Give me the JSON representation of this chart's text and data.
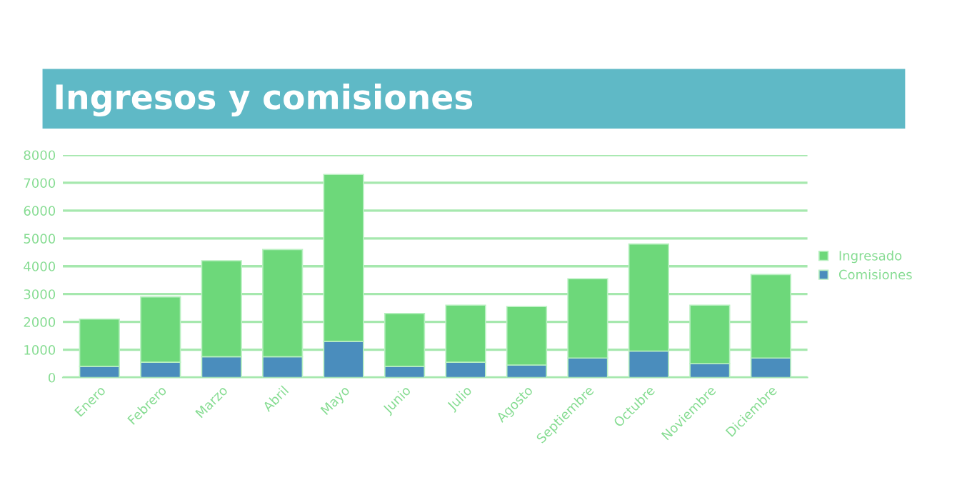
{
  "chart_data": {
    "type": "bar",
    "title": "Ingresos y comisiones",
    "stacked": true,
    "categories": [
      "Enero",
      "Febrero",
      "Marzo",
      "Abril",
      "Mayo",
      "Junio",
      "Julio",
      "Agosto",
      "Septiembre",
      "Octubre",
      "Noviembre",
      "Diciembre"
    ],
    "series": [
      {
        "name": "Comisiones",
        "color": "#4a8dbd",
        "values": [
          400,
          550,
          750,
          750,
          1300,
          400,
          550,
          450,
          700,
          950,
          500,
          700
        ]
      },
      {
        "name": "Ingresado",
        "color": "#6dd87a",
        "values": [
          1700,
          2350,
          3450,
          3850,
          6000,
          1900,
          2050,
          2100,
          2850,
          3850,
          2100,
          3000
        ]
      }
    ],
    "ylim": [
      0,
      8000
    ],
    "yticks": [
      0,
      1000,
      2000,
      3000,
      4000,
      5000,
      6000,
      7000,
      8000
    ],
    "grid": "y",
    "legend": "right"
  }
}
